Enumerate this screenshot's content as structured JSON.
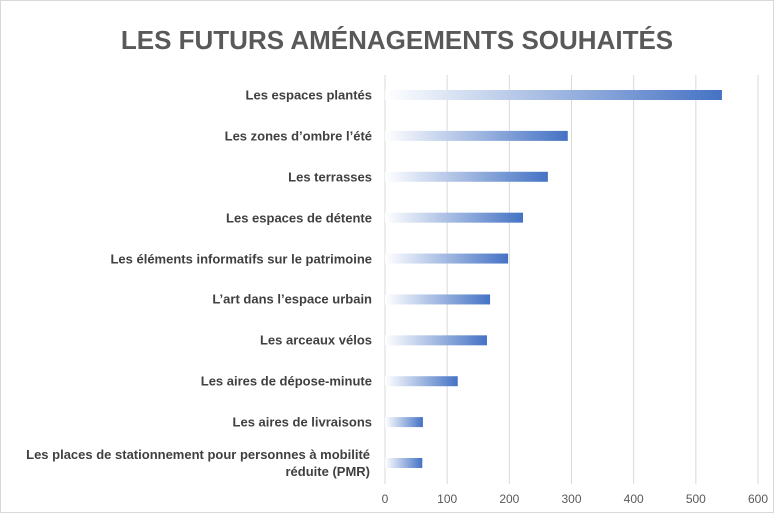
{
  "chart_data": {
    "type": "bar",
    "orientation": "horizontal",
    "title": "LES FUTURS AMÉNAGEMENTS SOUHAITÉS",
    "categories": [
      "Les espaces plantés",
      "Les zones d’ombre l’été",
      "Les terrasses",
      "Les espaces de détente",
      "Les éléments informatifs sur le patrimoine",
      "L’art dans l’espace urbain",
      "Les arceaux vélos",
      "Les aires de dépose-minute",
      "Les aires de livraisons",
      "Les places de stationnement pour personnes à mobilité réduite (PMR)"
    ],
    "values": [
      542,
      294,
      262,
      222,
      198,
      169,
      164,
      117,
      61,
      60
    ],
    "color": "#4472c4",
    "xlim": [
      0,
      600
    ],
    "xticks": [
      0,
      100,
      200,
      300,
      400,
      500,
      600
    ],
    "grid": true
  }
}
